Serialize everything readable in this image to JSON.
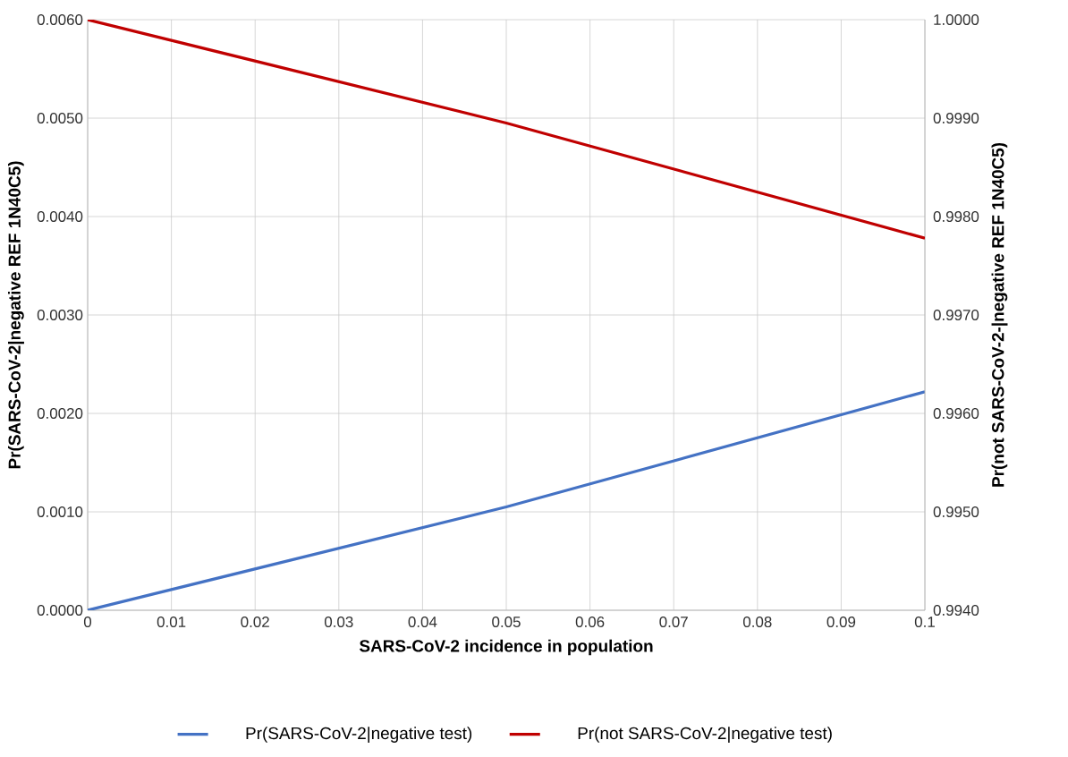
{
  "chart_data": {
    "type": "line",
    "xlabel": "SARS-CoV-2 incidence in population",
    "ylabel": "Pr(SARS-CoV-2|negative REF 1N40C5)",
    "y2label": "Pr(not SARS-CoV-2-|negative REF 1N40C5)",
    "x": [
      0,
      0.05,
      0.1
    ],
    "series": [
      {
        "name": "Pr(SARS-CoV-2|negative test)",
        "color": "#4472c4",
        "values": [
          0,
          0.00105,
          0.00222
        ]
      },
      {
        "name": "Pr(not SARS-CoV-2|negative test)",
        "color": "#c00000",
        "values": [
          1.0,
          0.99895,
          0.99778
        ],
        "axis": "y2"
      }
    ],
    "xlim": [
      0,
      0.1
    ],
    "xticks": [
      0,
      0.01,
      0.02,
      0.03,
      0.04,
      0.05,
      0.06,
      0.07,
      0.08,
      0.09,
      0.1
    ],
    "ylim": [
      0,
      0.006
    ],
    "yticks": [
      {
        "value": 0,
        "label": "0.0000"
      },
      {
        "value": 0.001,
        "label": "0.0010"
      },
      {
        "value": 0.002,
        "label": "0.0020"
      },
      {
        "value": 0.003,
        "label": "0.0030"
      },
      {
        "value": 0.004,
        "label": "0.0040"
      },
      {
        "value": 0.005,
        "label": "0.0050"
      },
      {
        "value": 0.006,
        "label": "0.0060"
      }
    ],
    "y2lim": [
      0.994,
      1.0
    ],
    "y2ticks": [
      {
        "value": 0.994,
        "label": "0.9940"
      },
      {
        "value": 0.995,
        "label": "0.9950"
      },
      {
        "value": 0.996,
        "label": "0.9960"
      },
      {
        "value": 0.997,
        "label": "0.9970"
      },
      {
        "value": 0.998,
        "label": "0.9980"
      },
      {
        "value": 0.999,
        "label": "0.9990"
      },
      {
        "value": 1.0,
        "label": "1.0000"
      }
    ],
    "grid": true,
    "legend": "bottom"
  }
}
